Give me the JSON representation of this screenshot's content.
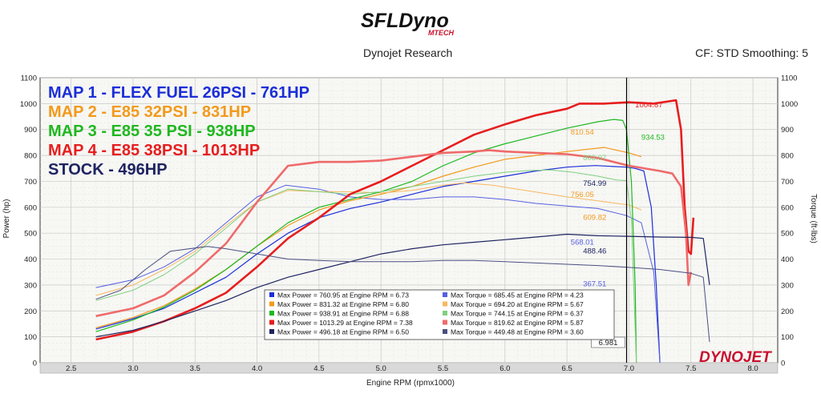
{
  "header": {
    "brand_main": "SFLDyno",
    "brand_sub": "MTECH",
    "center_title": "Dynojet Research",
    "right_info": "CF: STD Smoothing: 5",
    "footer_logo": "DYNOJET"
  },
  "chart_data": {
    "type": "line",
    "xlabel": "Engine RPM (rpmx1000)",
    "ylabel_left": "Power (hp)",
    "ylabel_right": "Torque (ft-lbs)",
    "xlim": [
      2.25,
      8.2
    ],
    "ylim": [
      0,
      1100
    ],
    "x_ticks": [
      "2.5",
      "3.0",
      "3.5",
      "4.0",
      "4.5",
      "5.0",
      "5.5",
      "6.0",
      "6.5",
      "7.0",
      "7.5",
      "8.0"
    ],
    "y_ticks": [
      "0",
      "100",
      "200",
      "300",
      "400",
      "500",
      "600",
      "700",
      "800",
      "900",
      "1000",
      "1100"
    ],
    "grid": true,
    "cursor_rpm": 6.981,
    "cursor_label": "6.981",
    "map_titles": [
      {
        "text": "MAP 1 - FLEX FUEL 26PSI - 761HP",
        "color": "#1b2ed8"
      },
      {
        "text": "MAP 2 - E85 32PSI - 831HP",
        "color": "#f29a1c"
      },
      {
        "text": "MAP 3 - E85 35 PSI - 938HP",
        "color": "#1fb81f"
      },
      {
        "text": "MAP 4 - E85 38PSI - 1013HP",
        "color": "#e61e1e"
      },
      {
        "text": "STOCK - 496HP",
        "color": "#1e2460"
      }
    ],
    "series": [
      {
        "name": "Map 1 Power",
        "color": "#1b2ed8",
        "width": 1.2,
        "x": [
          2.7,
          3.0,
          3.25,
          3.5,
          3.75,
          4.0,
          4.25,
          4.5,
          4.75,
          5.0,
          5.25,
          5.5,
          5.75,
          6.0,
          6.25,
          6.5,
          6.6,
          6.73,
          6.85,
          6.98,
          7.05,
          7.12,
          7.18,
          7.22,
          7.25
        ],
        "y": [
          130,
          170,
          210,
          270,
          330,
          420,
          500,
          560,
          595,
          620,
          650,
          680,
          700,
          720,
          740,
          755,
          758,
          761,
          758,
          755,
          750,
          740,
          600,
          300,
          0
        ]
      },
      {
        "name": "Map 1 Torque",
        "color": "#5560e0",
        "width": 1.0,
        "x": [
          2.7,
          3.0,
          3.25,
          3.5,
          3.75,
          4.0,
          4.23,
          4.5,
          4.75,
          5.0,
          5.25,
          5.5,
          5.75,
          6.0,
          6.25,
          6.5,
          6.75,
          6.98,
          7.1,
          7.2,
          7.25
        ],
        "y": [
          290,
          320,
          370,
          440,
          540,
          640,
          685,
          670,
          640,
          630,
          630,
          640,
          640,
          630,
          615,
          605,
          595,
          568,
          540,
          350,
          0
        ]
      },
      {
        "name": "Map 2 Power",
        "color": "#f29a1c",
        "width": 1.2,
        "x": [
          2.7,
          3.0,
          3.25,
          3.5,
          3.75,
          4.0,
          4.25,
          4.5,
          4.75,
          5.0,
          5.25,
          5.5,
          5.75,
          6.0,
          6.25,
          6.5,
          6.8,
          7.0,
          7.1
        ],
        "y": [
          135,
          175,
          220,
          285,
          360,
          450,
          530,
          590,
          625,
          650,
          680,
          720,
          755,
          785,
          800,
          815,
          831,
          810,
          795
        ]
      },
      {
        "name": "Map 2 Torque",
        "color": "#f7b860",
        "width": 1.0,
        "x": [
          2.7,
          3.0,
          3.25,
          3.5,
          3.75,
          4.0,
          4.25,
          4.5,
          4.75,
          5.0,
          5.25,
          5.5,
          5.67,
          5.9,
          6.1,
          6.3,
          6.5,
          6.7,
          6.9,
          7.0,
          7.1
        ],
        "y": [
          260,
          300,
          360,
          430,
          530,
          620,
          665,
          660,
          660,
          655,
          665,
          685,
          694,
          685,
          670,
          655,
          640,
          628,
          615,
          609,
          590
        ]
      },
      {
        "name": "Map 3 Power",
        "color": "#1fb81f",
        "width": 1.2,
        "x": [
          2.7,
          3.0,
          3.25,
          3.5,
          3.75,
          4.0,
          4.25,
          4.5,
          4.75,
          5.0,
          5.25,
          5.5,
          5.75,
          6.0,
          6.25,
          6.5,
          6.75,
          6.88,
          6.95,
          6.98,
          7.02,
          7.05,
          7.06
        ],
        "y": [
          120,
          165,
          215,
          280,
          360,
          450,
          540,
          600,
          630,
          660,
          700,
          760,
          810,
          845,
          875,
          905,
          930,
          939,
          935,
          900,
          700,
          300,
          0
        ]
      },
      {
        "name": "Map 3 Torque",
        "color": "#7fd07f",
        "width": 1.0,
        "x": [
          2.7,
          3.0,
          3.25,
          3.5,
          3.75,
          4.0,
          4.25,
          4.5,
          4.75,
          5.0,
          5.25,
          5.5,
          5.75,
          6.0,
          6.2,
          6.37,
          6.55,
          6.75,
          6.9,
          6.98,
          7.02,
          7.06
        ],
        "y": [
          240,
          280,
          340,
          420,
          520,
          620,
          670,
          660,
          650,
          660,
          680,
          700,
          720,
          735,
          742,
          744,
          735,
          720,
          705,
          703,
          550,
          0
        ]
      },
      {
        "name": "Map 4 Power",
        "color": "#e61e1e",
        "width": 2.6,
        "x": [
          2.7,
          3.0,
          3.25,
          3.5,
          3.75,
          4.0,
          4.25,
          4.5,
          4.75,
          5.0,
          5.25,
          5.5,
          5.75,
          6.0,
          6.25,
          6.5,
          6.6,
          6.8,
          7.0,
          7.2,
          7.38,
          7.42,
          7.45,
          7.48,
          7.5,
          7.52
        ],
        "y": [
          90,
          120,
          160,
          210,
          270,
          370,
          480,
          560,
          650,
          700,
          760,
          820,
          880,
          920,
          955,
          980,
          1000,
          1000,
          1005,
          1000,
          1013,
          900,
          600,
          430,
          420,
          560
        ]
      },
      {
        "name": "Map 4 Torque",
        "color": "#ef6a6a",
        "width": 2.6,
        "x": [
          2.7,
          3.0,
          3.25,
          3.5,
          3.75,
          4.0,
          4.25,
          4.5,
          4.75,
          5.0,
          5.25,
          5.5,
          5.75,
          5.87,
          6.0,
          6.25,
          6.5,
          6.75,
          7.0,
          7.25,
          7.35,
          7.42,
          7.46,
          7.48,
          7.5
        ],
        "y": [
          180,
          210,
          260,
          350,
          460,
          620,
          760,
          775,
          775,
          780,
          795,
          810,
          815,
          820,
          815,
          810,
          805,
          790,
          760,
          740,
          730,
          680,
          500,
          300,
          350
        ]
      },
      {
        "name": "Stock Power",
        "color": "#1e2460",
        "width": 1.2,
        "x": [
          2.7,
          3.0,
          3.25,
          3.5,
          3.75,
          4.0,
          4.25,
          4.5,
          4.75,
          5.0,
          5.25,
          5.5,
          5.75,
          6.0,
          6.25,
          6.5,
          6.75,
          7.0,
          7.25,
          7.5,
          7.6,
          7.65
        ],
        "y": [
          100,
          125,
          160,
          200,
          240,
          290,
          330,
          360,
          390,
          420,
          440,
          455,
          465,
          475,
          485,
          496,
          490,
          488,
          485,
          484,
          480,
          300
        ]
      },
      {
        "name": "Stock Torque",
        "color": "#4a4f80",
        "width": 1.0,
        "x": [
          2.7,
          2.9,
          3.1,
          3.3,
          3.6,
          3.75,
          4.0,
          4.25,
          4.5,
          4.75,
          5.0,
          5.25,
          5.5,
          5.75,
          6.0,
          6.25,
          6.5,
          6.75,
          7.0,
          7.25,
          7.5,
          7.6,
          7.65
        ],
        "y": [
          245,
          280,
          360,
          430,
          449,
          440,
          420,
          400,
          395,
          390,
          390,
          390,
          395,
          395,
          390,
          385,
          380,
          375,
          368,
          360,
          345,
          330,
          80
        ]
      }
    ],
    "annotations": [
      {
        "text": "1004.87",
        "x": 7.05,
        "y": 985,
        "color": "#e61e1e"
      },
      {
        "text": "934.53",
        "x": 7.1,
        "y": 860,
        "color": "#1fb81f"
      },
      {
        "text": "810.54",
        "x": 6.53,
        "y": 880,
        "color": "#f29a1c"
      },
      {
        "text": "803.07",
        "x": 6.63,
        "y": 782,
        "color": "#7fd07f"
      },
      {
        "text": "754.99",
        "x": 6.63,
        "y": 683,
        "color": "#1e2460"
      },
      {
        "text": "756.05",
        "x": 6.53,
        "y": 640,
        "color": "#f29a1c"
      },
      {
        "text": "609.82",
        "x": 6.63,
        "y": 552,
        "color": "#f29a1c"
      },
      {
        "text": "568.01",
        "x": 6.53,
        "y": 455,
        "color": "#5560e0"
      },
      {
        "text": "488.46",
        "x": 6.63,
        "y": 422,
        "color": "#1e2460"
      },
      {
        "text": "367.51",
        "x": 6.63,
        "y": 295,
        "color": "#5560e0"
      }
    ],
    "legend": {
      "placement": "bottom-center",
      "entries": [
        {
          "text": "Max Power = 760.95 at Engine RPM = 6.73",
          "color": "#1b2ed8"
        },
        {
          "text": "Max Torque = 685.45 at Engine RPM = 4.23",
          "color": "#5560e0"
        },
        {
          "text": "Max Power = 831.32 at Engine RPM = 6.80",
          "color": "#f29a1c"
        },
        {
          "text": "Max Torque = 694.20 at Engine RPM = 5.67",
          "color": "#f7b860"
        },
        {
          "text": "Max Power = 938.91 at Engine RPM = 6.88",
          "color": "#1fb81f"
        },
        {
          "text": "Max Torque = 744.15 at Engine RPM = 6.37",
          "color": "#7fd07f"
        },
        {
          "text": "Max Power = 1013.29 at Engine RPM = 7.38",
          "color": "#e61e1e"
        },
        {
          "text": "Max Torque = 819.62 at Engine RPM = 5.87",
          "color": "#ef6a6a"
        },
        {
          "text": "Max Power = 496.18 at Engine RPM = 6.50",
          "color": "#1e2460"
        },
        {
          "text": "Max Torque = 449.48 at Engine RPM = 3.60",
          "color": "#4a4f80"
        }
      ]
    }
  }
}
